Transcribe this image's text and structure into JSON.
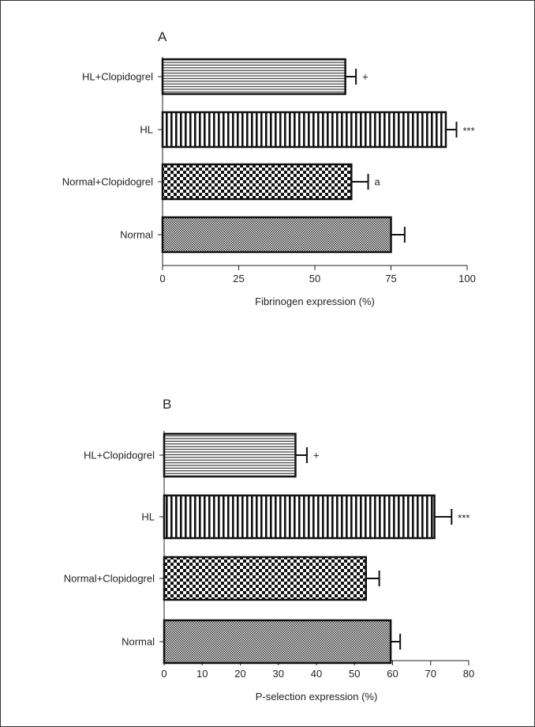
{
  "chart_data": [
    {
      "type": "bar",
      "orientation": "horizontal",
      "panel_label": "A",
      "categories": [
        "HL+Clopidogrel",
        "HL",
        "Normal+Clopidogrel",
        "Normal"
      ],
      "values": [
        60,
        93,
        62,
        75
      ],
      "errors": [
        3.5,
        3.5,
        5.5,
        4.5
      ],
      "annotations": [
        "+",
        "***",
        "a",
        ""
      ],
      "patterns": [
        "hlines",
        "vlines",
        "checker",
        "fine"
      ],
      "xlabel": "Fibrinogen expression (%)",
      "xlim": [
        0,
        100
      ],
      "xticks": [
        0,
        25,
        50,
        75,
        100
      ],
      "grid": false
    },
    {
      "type": "bar",
      "orientation": "horizontal",
      "panel_label": "B",
      "categories": [
        "HL+Clopidogrel",
        "HL",
        "Normal+Clopidogrel",
        "Normal"
      ],
      "values": [
        34.5,
        71,
        53,
        59.5
      ],
      "errors": [
        3,
        4.5,
        3.5,
        2.5
      ],
      "annotations": [
        "+",
        "***",
        "",
        ""
      ],
      "patterns": [
        "hlines",
        "vlines",
        "checker",
        "fine"
      ],
      "xlabel": "P-selection expression (%)",
      "xlim": [
        0,
        80
      ],
      "xticks": [
        0,
        10,
        20,
        30,
        40,
        50,
        60,
        70,
        80
      ],
      "grid": false
    }
  ],
  "colors": {
    "ink": "#111111",
    "fill": "#ffffff"
  }
}
